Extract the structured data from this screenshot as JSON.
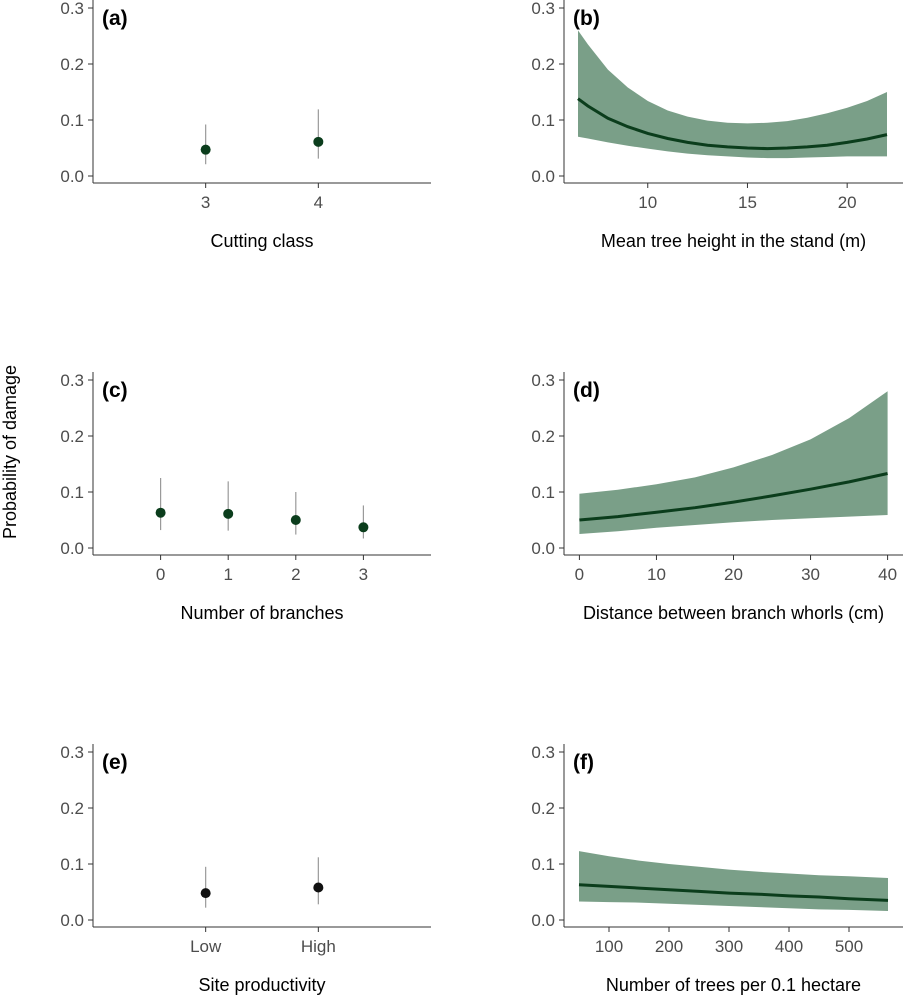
{
  "figure": {
    "ylabel": "Probability of damage",
    "colors": {
      "point": "#0b3d1c",
      "point_black": "#111111",
      "line": "#0b3d1c",
      "band": "#7a9f88",
      "errorbar": "#9a9a9a",
      "axis": "#333333"
    }
  },
  "chart_data": [
    {
      "panel": "(a)",
      "type": "scatter",
      "xlabel": "Cutting class",
      "categories": [
        "3",
        "4"
      ],
      "values": [
        0.047,
        0.061
      ],
      "lower": [
        0.021,
        0.031
      ],
      "upper": [
        0.092,
        0.119
      ],
      "ylim": [
        0,
        0.3
      ],
      "yticks": [
        0.0,
        0.1,
        0.2,
        0.3
      ],
      "ytick_labels": [
        "0.0",
        "0.1",
        "0.2",
        "0.3"
      ],
      "point_color": "#0b3d1c"
    },
    {
      "panel": "(b)",
      "type": "line",
      "xlabel": "Mean tree height in the stand (m)",
      "x": [
        6.5,
        7,
        8,
        9,
        10,
        11,
        12,
        13,
        14,
        15,
        16,
        17,
        18,
        19,
        20,
        21,
        22
      ],
      "y": [
        0.138,
        0.125,
        0.103,
        0.088,
        0.076,
        0.067,
        0.06,
        0.055,
        0.052,
        0.05,
        0.049,
        0.05,
        0.052,
        0.055,
        0.06,
        0.066,
        0.074
      ],
      "lower": [
        0.07,
        0.067,
        0.06,
        0.054,
        0.049,
        0.044,
        0.04,
        0.037,
        0.035,
        0.033,
        0.032,
        0.032,
        0.033,
        0.034,
        0.035,
        0.035,
        0.035
      ],
      "upper": [
        0.26,
        0.235,
        0.19,
        0.158,
        0.134,
        0.117,
        0.106,
        0.099,
        0.095,
        0.094,
        0.095,
        0.098,
        0.104,
        0.112,
        0.122,
        0.134,
        0.15
      ],
      "xlim": [
        5.8,
        22.8
      ],
      "xticks": [
        10,
        15,
        20
      ],
      "ylim": [
        0,
        0.3
      ],
      "yticks": [
        0.0,
        0.1,
        0.2,
        0.3
      ],
      "ytick_labels": [
        "0.0",
        "0.1",
        "0.2",
        "0.3"
      ]
    },
    {
      "panel": "(c)",
      "type": "scatter",
      "xlabel": "Number of branches",
      "categories": [
        "0",
        "1",
        "2",
        "3"
      ],
      "values": [
        0.063,
        0.061,
        0.05,
        0.037
      ],
      "lower": [
        0.032,
        0.031,
        0.024,
        0.017
      ],
      "upper": [
        0.125,
        0.119,
        0.1,
        0.076
      ],
      "ylim": [
        0,
        0.3
      ],
      "yticks": [
        0.0,
        0.1,
        0.2,
        0.3
      ],
      "ytick_labels": [
        "0.0",
        "0.1",
        "0.2",
        "0.3"
      ],
      "point_color": "#0b3d1c"
    },
    {
      "panel": "(d)",
      "type": "line",
      "xlabel": "Distance between branch whorls (cm)",
      "x": [
        0,
        5,
        10,
        15,
        20,
        25,
        30,
        35,
        40
      ],
      "y": [
        0.05,
        0.056,
        0.064,
        0.072,
        0.082,
        0.093,
        0.105,
        0.118,
        0.133
      ],
      "lower": [
        0.025,
        0.03,
        0.036,
        0.041,
        0.046,
        0.05,
        0.053,
        0.056,
        0.059
      ],
      "upper": [
        0.097,
        0.104,
        0.114,
        0.126,
        0.144,
        0.166,
        0.194,
        0.232,
        0.28
      ],
      "xlim": [
        -2,
        42
      ],
      "xticks": [
        0,
        10,
        20,
        30,
        40
      ],
      "ylim": [
        0,
        0.3
      ],
      "yticks": [
        0.0,
        0.1,
        0.2,
        0.3
      ],
      "ytick_labels": [
        "0.0",
        "0.1",
        "0.2",
        "0.3"
      ]
    },
    {
      "panel": "(e)",
      "type": "scatter",
      "xlabel": "Site productivity",
      "categories": [
        "Low",
        "High"
      ],
      "values": [
        0.048,
        0.058
      ],
      "lower": [
        0.022,
        0.028
      ],
      "upper": [
        0.095,
        0.112
      ],
      "ylim": [
        0,
        0.3
      ],
      "yticks": [
        0.0,
        0.1,
        0.2,
        0.3
      ],
      "ytick_labels": [
        "0.0",
        "0.1",
        "0.2",
        "0.3"
      ],
      "point_color": "#111111"
    },
    {
      "panel": "(f)",
      "type": "line",
      "xlabel": "Number of trees per 0.1 hectare",
      "x": [
        50,
        100,
        150,
        200,
        250,
        300,
        350,
        400,
        450,
        500,
        565
      ],
      "y": [
        0.063,
        0.06,
        0.057,
        0.054,
        0.051,
        0.048,
        0.046,
        0.043,
        0.041,
        0.038,
        0.035
      ],
      "lower": [
        0.033,
        0.032,
        0.031,
        0.029,
        0.027,
        0.025,
        0.023,
        0.021,
        0.019,
        0.018,
        0.016
      ],
      "upper": [
        0.123,
        0.114,
        0.106,
        0.1,
        0.095,
        0.09,
        0.086,
        0.083,
        0.08,
        0.078,
        0.075
      ],
      "xlim": [
        25,
        590
      ],
      "xticks": [
        100,
        200,
        300,
        400,
        500
      ],
      "ylim": [
        0,
        0.3
      ],
      "yticks": [
        0.0,
        0.1,
        0.2,
        0.3
      ],
      "ytick_labels": [
        "0.0",
        "0.1",
        "0.2",
        "0.3"
      ]
    }
  ]
}
